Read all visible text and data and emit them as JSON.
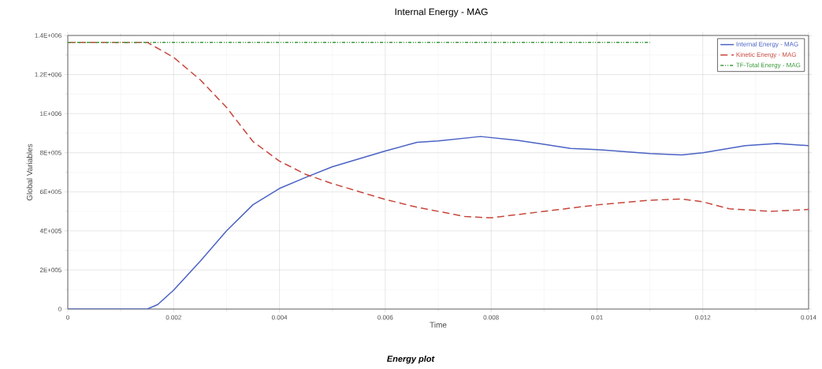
{
  "chart_data": {
    "type": "line",
    "title": "Internal Energy - MAG",
    "xlabel": "Time",
    "ylabel": "Global Variables",
    "annotations": [
      "Energy plot"
    ],
    "series": [
      {
        "name": "Internal Energy - MAG",
        "color": "#4a62c4",
        "line_style": "solid",
        "x": [
          0,
          0.0015,
          0.0017,
          0.002,
          0.0025,
          0.003,
          0.0035,
          0.004,
          0.0045,
          0.005,
          0.006,
          0.0066,
          0.007,
          0.0078,
          0.0085,
          0.009,
          0.0095,
          0.01,
          0.011,
          0.0116,
          0.012,
          0.0128,
          0.0134,
          0.014
        ],
        "values": [
          0,
          0,
          23000,
          97000,
          244000,
          400000,
          534000,
          617000,
          674000,
          728000,
          809000,
          853000,
          860000,
          883000,
          863000,
          843000,
          822000,
          816000,
          796000,
          789000,
          800000,
          836000,
          847000,
          836000
        ]
      },
      {
        "name": "Kinetic Energy - MAG",
        "color": "#c8463c",
        "line_style": "dashed",
        "x": [
          0,
          0.0015,
          0.002,
          0.0025,
          0.003,
          0.0035,
          0.004,
          0.0045,
          0.005,
          0.006,
          0.0066,
          0.0075,
          0.008,
          0.009,
          0.01,
          0.011,
          0.0116,
          0.012,
          0.0125,
          0.0133,
          0.014
        ],
        "values": [
          1365000,
          1365000,
          1288000,
          1174000,
          1032000,
          857000,
          757000,
          689000,
          642000,
          561000,
          521000,
          474000,
          467000,
          500000,
          533000,
          557000,
          563000,
          549000,
          513000,
          500000,
          510000
        ]
      },
      {
        "name": "TF-Total Energy - MAG",
        "color": "#3a9a3a",
        "line_style": "dotted",
        "x": [
          0,
          0.011
        ],
        "values": [
          1365000,
          1365000
        ]
      }
    ],
    "xlim": [
      0,
      0.014
    ],
    "ylim": [
      0,
      1400000
    ],
    "xticks": [
      0,
      0.002,
      0.004,
      0.006,
      0.008,
      0.01,
      0.012,
      0.014
    ],
    "yticks": [
      {
        "value": 0,
        "label": "0"
      },
      {
        "value": 200000,
        "label": "2E+005"
      },
      {
        "value": 400000,
        "label": "4E+005"
      },
      {
        "value": 600000,
        "label": "6E+005"
      },
      {
        "value": 800000,
        "label": "8E+005"
      },
      {
        "value": 1000000,
        "label": "1E+006"
      },
      {
        "value": 1200000,
        "label": "1.2E+006"
      },
      {
        "value": 1400000,
        "label": "1.4E+006"
      }
    ],
    "grid": true,
    "legend": "top right",
    "marker": "none"
  }
}
